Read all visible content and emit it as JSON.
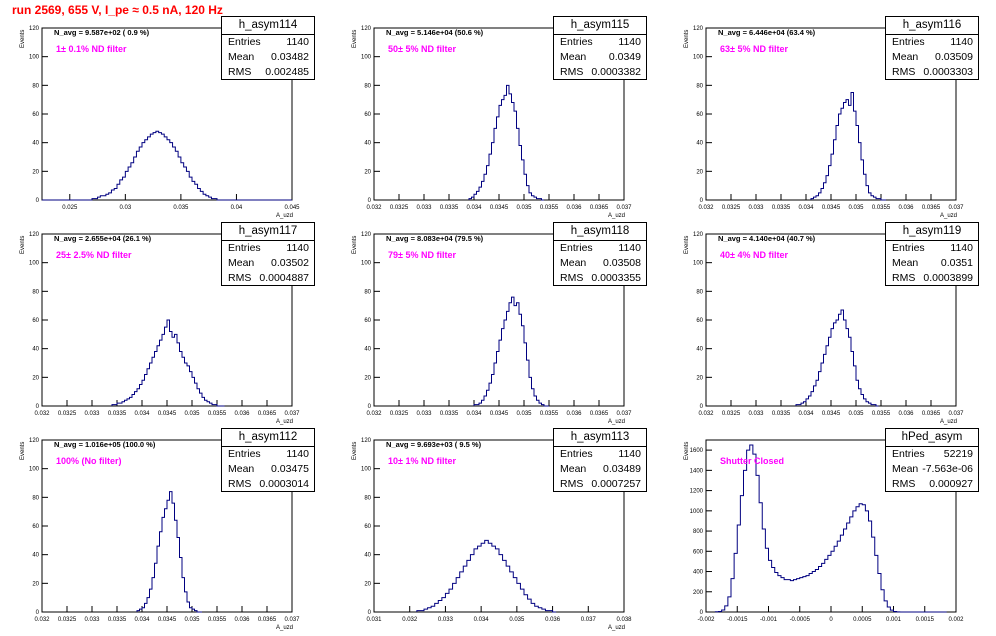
{
  "canvas_title": "run 2569,   655 V, I_pe ≈ 0.5 nA, 120 Hz",
  "colors": {
    "title": "#ff0000",
    "annotation": "#ff00ff",
    "line": "#000080",
    "frame": "#000000"
  },
  "stats_labels": {
    "entries": "Entries",
    "mean": "Mean",
    "rms": "RMS"
  },
  "chart_data": [
    {
      "type": "bar",
      "name": "h_asym114",
      "stats": {
        "entries": "1140",
        "mean": "0.03482",
        "rms": "0.002485"
      },
      "n_avg": "N_avg = 9.587e+02 ( 0.9 %)",
      "filter": "1± 0.1% ND filter",
      "ylabel": "Events",
      "xlabel": "A_uzd",
      "xlim": [
        0.0225,
        0.045
      ],
      "ylim": [
        0,
        120
      ],
      "xticks": [
        0.025,
        0.03,
        0.035,
        0.04,
        0.045
      ],
      "xtick_labels": [
        "0.025",
        "0.03",
        "0.035",
        "0.04",
        "0.045"
      ],
      "yticks": [
        0,
        20,
        40,
        60,
        80,
        100,
        120
      ],
      "ytick_labels": [
        "0",
        "20",
        "40",
        "60",
        "80",
        "100",
        "120"
      ],
      "bins": {
        "start": 0.0225,
        "width": 0.00025,
        "counts": [
          0,
          0,
          0,
          0,
          0,
          0,
          0,
          0,
          0,
          0,
          0,
          0,
          0,
          0,
          0,
          0,
          0,
          0,
          1,
          1,
          2,
          3,
          3,
          4,
          5,
          7,
          8,
          11,
          14,
          16,
          20,
          23,
          26,
          30,
          34,
          37,
          40,
          42,
          44,
          46,
          47,
          48,
          47,
          46,
          44,
          42,
          40,
          37,
          34,
          30,
          26,
          23,
          20,
          16,
          13,
          11,
          8,
          6,
          4,
          3,
          2,
          1,
          1,
          0,
          0,
          0,
          0,
          0,
          0,
          0,
          0,
          0,
          0,
          0,
          0,
          0,
          0,
          0,
          0,
          0,
          0,
          0,
          0,
          0,
          0,
          0,
          0,
          0,
          0,
          0
        ]
      }
    },
    {
      "type": "bar",
      "name": "h_asym115",
      "stats": {
        "entries": "1140",
        "mean": "0.0349",
        "rms": "0.0003382"
      },
      "n_avg": "N_avg = 5.146e+04 (50.6 %)",
      "filter": "50± 5% ND filter",
      "ylabel": "Events",
      "xlabel": "A_uzd",
      "xlim": [
        0.032,
        0.037
      ],
      "ylim": [
        0,
        120
      ],
      "xticks": [
        0.032,
        0.0325,
        0.033,
        0.0335,
        0.034,
        0.0345,
        0.035,
        0.0355,
        0.036,
        0.0365,
        0.037
      ],
      "xtick_labels": [
        "0.032",
        "0.0325",
        "0.033",
        "0.0335",
        "0.034",
        "0.0345",
        "0.035",
        "0.0355",
        "0.036",
        "0.0365",
        "0.037"
      ],
      "yticks": [
        0,
        20,
        40,
        60,
        80,
        100,
        120
      ],
      "ytick_labels": [
        "0",
        "20",
        "40",
        "60",
        "80",
        "100",
        "120"
      ],
      "bins": {
        "start": 0.0339,
        "width": 5e-05,
        "counts": [
          1,
          2,
          4,
          6,
          9,
          13,
          18,
          24,
          32,
          40,
          50,
          58,
          66,
          70,
          73,
          80,
          74,
          68,
          62,
          50,
          38,
          28,
          18,
          10,
          5,
          3,
          2,
          1,
          1,
          0
        ]
      }
    },
    {
      "type": "bar",
      "name": "h_asym116",
      "stats": {
        "entries": "1140",
        "mean": "0.03509",
        "rms": "0.0003303"
      },
      "n_avg": "N_avg = 6.446e+04 (63.4 %)",
      "filter": "63± 5% ND filter",
      "ylabel": "Events",
      "xlabel": "A_uzd",
      "xlim": [
        0.032,
        0.037
      ],
      "ylim": [
        0,
        120
      ],
      "xticks": [
        0.032,
        0.0325,
        0.033,
        0.0335,
        0.034,
        0.0345,
        0.035,
        0.0355,
        0.036,
        0.0365,
        0.037
      ],
      "xtick_labels": [
        "0.032",
        "0.0325",
        "0.033",
        "0.0335",
        "0.034",
        "0.0345",
        "0.035",
        "0.0355",
        "0.036",
        "0.0365",
        "0.037"
      ],
      "yticks": [
        0,
        20,
        40,
        60,
        80,
        100,
        120
      ],
      "ytick_labels": [
        "0",
        "20",
        "40",
        "60",
        "80",
        "100",
        "120"
      ],
      "bins": {
        "start": 0.0341,
        "width": 5e-05,
        "counts": [
          1,
          2,
          3,
          5,
          8,
          12,
          17,
          24,
          32,
          42,
          52,
          60,
          64,
          68,
          70,
          66,
          75,
          62,
          52,
          40,
          28,
          18,
          10,
          5,
          3,
          2,
          1,
          1,
          0,
          0
        ]
      }
    },
    {
      "type": "bar",
      "name": "h_asym117",
      "stats": {
        "entries": "1140",
        "mean": "0.03502",
        "rms": "0.0004887"
      },
      "n_avg": "N_avg = 2.655e+04 (26.1 %)",
      "filter": "25± 2.5% ND filter",
      "ylabel": "Events",
      "xlabel": "A_uzd",
      "xlim": [
        0.032,
        0.037
      ],
      "ylim": [
        0,
        120
      ],
      "xticks": [
        0.032,
        0.0325,
        0.033,
        0.0335,
        0.034,
        0.0345,
        0.035,
        0.0355,
        0.036,
        0.0365,
        0.037
      ],
      "xtick_labels": [
        "0.032",
        "0.0325",
        "0.033",
        "0.0335",
        "0.034",
        "0.0345",
        "0.035",
        "0.0355",
        "0.036",
        "0.0365",
        "0.037"
      ],
      "yticks": [
        0,
        20,
        40,
        60,
        80,
        100,
        120
      ],
      "ytick_labels": [
        "0",
        "20",
        "40",
        "60",
        "80",
        "100",
        "120"
      ],
      "bins": {
        "start": 0.0334,
        "width": 5e-05,
        "counts": [
          1,
          1,
          2,
          2,
          3,
          4,
          5,
          6,
          8,
          10,
          12,
          15,
          18,
          22,
          26,
          30,
          34,
          38,
          42,
          46,
          50,
          55,
          60,
          52,
          48,
          50,
          44,
          38,
          34,
          30,
          28,
          24,
          20,
          16,
          12,
          9,
          6,
          4,
          3,
          2,
          1,
          1,
          0,
          0,
          0
        ]
      }
    },
    {
      "type": "bar",
      "name": "h_asym118",
      "stats": {
        "entries": "1140",
        "mean": "0.03508",
        "rms": "0.0003355"
      },
      "n_avg": "N_avg = 8.083e+04 (79.5 %)",
      "filter": "79± 5% ND filter",
      "ylabel": "Events",
      "xlabel": "A_uzd",
      "xlim": [
        0.032,
        0.037
      ],
      "ylim": [
        0,
        120
      ],
      "xticks": [
        0.032,
        0.0325,
        0.033,
        0.0335,
        0.034,
        0.0345,
        0.035,
        0.0355,
        0.036,
        0.0365,
        0.037
      ],
      "xtick_labels": [
        "0.032",
        "0.0325",
        "0.033",
        "0.0335",
        "0.034",
        "0.0345",
        "0.035",
        "0.0355",
        "0.036",
        "0.0365",
        "0.037"
      ],
      "yticks": [
        0,
        20,
        40,
        60,
        80,
        100,
        120
      ],
      "ytick_labels": [
        "0",
        "20",
        "40",
        "60",
        "80",
        "100",
        "120"
      ],
      "bins": {
        "start": 0.034,
        "width": 5e-05,
        "counts": [
          1,
          1,
          2,
          4,
          7,
          11,
          16,
          22,
          30,
          38,
          46,
          54,
          60,
          66,
          72,
          76,
          70,
          72,
          64,
          56,
          44,
          32,
          20,
          12,
          7,
          4,
          2,
          1,
          0,
          0
        ]
      }
    },
    {
      "type": "bar",
      "name": "h_asym119",
      "stats": {
        "entries": "1140",
        "mean": "0.0351",
        "rms": "0.0003899"
      },
      "n_avg": "N_avg = 4.140e+04 (40.7 %)",
      "filter": "40± 4% ND filter",
      "ylabel": "Events",
      "xlabel": "A_uzd",
      "xlim": [
        0.032,
        0.037
      ],
      "ylim": [
        0,
        120
      ],
      "xticks": [
        0.032,
        0.0325,
        0.033,
        0.0335,
        0.034,
        0.0345,
        0.035,
        0.0355,
        0.036,
        0.0365,
        0.037
      ],
      "xtick_labels": [
        "0.032",
        "0.0325",
        "0.033",
        "0.0335",
        "0.034",
        "0.0345",
        "0.035",
        "0.0355",
        "0.036",
        "0.0365",
        "0.037"
      ],
      "yticks": [
        0,
        20,
        40,
        60,
        80,
        100,
        120
      ],
      "ytick_labels": [
        "0",
        "20",
        "40",
        "60",
        "80",
        "100",
        "120"
      ],
      "bins": {
        "start": 0.0338,
        "width": 5e-05,
        "counts": [
          1,
          1,
          2,
          3,
          5,
          7,
          10,
          14,
          18,
          24,
          30,
          36,
          42,
          48,
          54,
          58,
          60,
          64,
          67,
          60,
          54,
          48,
          38,
          28,
          18,
          12,
          8,
          5,
          3,
          2,
          1,
          1,
          0
        ]
      }
    },
    {
      "type": "bar",
      "name": "h_asym112",
      "stats": {
        "entries": "1140",
        "mean": "0.03475",
        "rms": "0.0003014"
      },
      "n_avg": "N_avg = 1.016e+05 (100.0 %)",
      "filter": "100% (No filter)",
      "ylabel": "Events",
      "xlabel": "A_uzd",
      "xlim": [
        0.032,
        0.037
      ],
      "ylim": [
        0,
        120
      ],
      "xticks": [
        0.032,
        0.0325,
        0.033,
        0.0335,
        0.034,
        0.0345,
        0.035,
        0.0355,
        0.036,
        0.0365,
        0.037
      ],
      "xtick_labels": [
        "0.032",
        "0.0325",
        "0.033",
        "0.0335",
        "0.034",
        "0.0345",
        "0.035",
        "0.0355",
        "0.036",
        "0.0365",
        "0.037"
      ],
      "yticks": [
        0,
        20,
        40,
        60,
        80,
        100,
        120
      ],
      "ytick_labels": [
        "0",
        "20",
        "40",
        "60",
        "80",
        "100",
        "120"
      ],
      "bins": {
        "start": 0.0339,
        "width": 5e-05,
        "counts": [
          1,
          2,
          3,
          6,
          10,
          16,
          24,
          34,
          46,
          56,
          66,
          72,
          78,
          84,
          76,
          64,
          52,
          38,
          24,
          14,
          7,
          3,
          2,
          1,
          0,
          0
        ]
      }
    },
    {
      "type": "bar",
      "name": "h_asym113",
      "stats": {
        "entries": "1140",
        "mean": "0.03489",
        "rms": "0.0007257"
      },
      "n_avg": "N_avg = 9.693e+03 ( 9.5 %)",
      "filter": "10± 1% ND filter",
      "ylabel": "Events",
      "xlabel": "A_uzd",
      "xlim": [
        0.031,
        0.038
      ],
      "ylim": [
        0,
        120
      ],
      "xticks": [
        0.031,
        0.032,
        0.033,
        0.034,
        0.035,
        0.036,
        0.037,
        0.038
      ],
      "xtick_labels": [
        "0.031",
        "0.032",
        "0.033",
        "0.034",
        "0.035",
        "0.036",
        "0.037",
        "0.038"
      ],
      "yticks": [
        0,
        20,
        40,
        60,
        80,
        100,
        120
      ],
      "ytick_labels": [
        "0",
        "20",
        "40",
        "60",
        "80",
        "100",
        "120"
      ],
      "bins": {
        "start": 0.0322,
        "width": 0.0001,
        "counts": [
          1,
          1,
          2,
          3,
          4,
          6,
          8,
          10,
          13,
          16,
          20,
          24,
          28,
          32,
          36,
          40,
          44,
          46,
          48,
          50,
          48,
          46,
          44,
          40,
          36,
          32,
          28,
          24,
          20,
          16,
          12,
          9,
          6,
          4,
          3,
          2,
          1,
          1,
          0
        ]
      }
    },
    {
      "type": "bar",
      "name": "hPed_asym",
      "stats": {
        "entries": "52219",
        "mean": "-7.563e-06",
        "rms": "0.000927"
      },
      "n_avg": "",
      "filter": "Shutter Closed",
      "ylabel": "Events",
      "xlabel": "",
      "xlim": [
        -0.002,
        0.002
      ],
      "ylim": [
        0,
        1700
      ],
      "xticks": [
        -0.002,
        -0.0015,
        -0.001,
        -0.0005,
        0,
        0.0005,
        0.001,
        0.0015,
        0.002
      ],
      "xtick_labels": [
        "-0.002",
        "-0.0015",
        "-0.001",
        "-0.0005",
        "0",
        "0.0005",
        "0.001",
        "0.0015",
        "0.002"
      ],
      "yticks": [
        0,
        200,
        400,
        600,
        800,
        1000,
        1200,
        1400,
        1600
      ],
      "ytick_labels": [
        "0",
        "200",
        "400",
        "600",
        "800",
        "1000",
        "1200",
        "1400",
        "1600"
      ],
      "bins": {
        "start": -0.00185,
        "width": 5e-05,
        "counts": [
          2,
          5,
          20,
          60,
          150,
          330,
          580,
          860,
          1150,
          1400,
          1600,
          1650,
          1560,
          1350,
          1080,
          820,
          630,
          510,
          440,
          390,
          360,
          340,
          320,
          320,
          310,
          320,
          330,
          340,
          350,
          360,
          380,
          400,
          420,
          450,
          480,
          520,
          560,
          600,
          650,
          700,
          760,
          820,
          880,
          940,
          1000,
          1040,
          1070,
          1060,
          1000,
          900,
          740,
          560,
          380,
          220,
          110,
          50,
          18,
          5,
          1,
          0,
          0,
          0,
          0,
          0,
          0,
          0,
          0,
          0,
          0,
          0,
          0,
          0,
          0,
          0
        ]
      }
    }
  ]
}
